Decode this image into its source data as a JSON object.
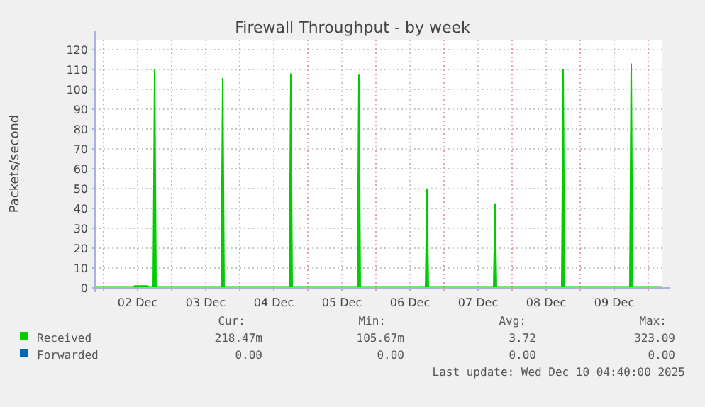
{
  "chart_data": {
    "type": "area",
    "title": "Firewall Throughput - by week",
    "ylabel": "Packets/second",
    "x": [
      "2025-12-01T21:00",
      "2025-12-02T10:30",
      "2025-12-02T11:00",
      "2025-12-02T15:30",
      "2025-12-02T16:00",
      "2025-12-02T17:30",
      "2025-12-02T18:00",
      "2025-12-02T18:30",
      "2025-12-03T17:30",
      "2025-12-03T18:00",
      "2025-12-03T18:30",
      "2025-12-04T17:30",
      "2025-12-04T18:00",
      "2025-12-04T18:30",
      "2025-12-05T17:30",
      "2025-12-05T18:00",
      "2025-12-05T18:30",
      "2025-12-06T17:30",
      "2025-12-06T18:00",
      "2025-12-06T18:30",
      "2025-12-07T17:30",
      "2025-12-07T18:00",
      "2025-12-07T18:30",
      "2025-12-08T17:30",
      "2025-12-08T18:00",
      "2025-12-08T18:30",
      "2025-12-09T17:30",
      "2025-12-09T18:00",
      "2025-12-09T18:30",
      "2025-12-10T04:40"
    ],
    "series": [
      {
        "name": "Received",
        "color": "#00cc00",
        "values": [
          0.2,
          0.2,
          1,
          1,
          0.2,
          0.2,
          110,
          0.2,
          0.2,
          105.7,
          0.2,
          0.2,
          108,
          0.2,
          0.2,
          107.4,
          0.2,
          0.2,
          50,
          0.2,
          0.2,
          42.6,
          0.2,
          0.2,
          110,
          0.2,
          0.2,
          113,
          0.2,
          0.2
        ]
      },
      {
        "name": "Forwarded",
        "color": "#0066b3",
        "values": [
          null,
          null,
          null,
          null,
          null,
          null,
          null,
          null,
          null,
          null,
          null,
          null,
          null,
          null,
          null,
          null,
          null,
          null,
          null,
          null,
          null,
          null,
          null,
          null,
          null,
          null,
          null,
          null,
          null,
          null
        ]
      }
    ],
    "xlim": [
      "2025-12-01T21:00",
      "2025-12-10T05:00"
    ],
    "xticks": [
      {
        "value": "2025-12-02T00:00",
        "label": null
      },
      {
        "value": "2025-12-02T12:00",
        "label": "02 Dec"
      },
      {
        "value": "2025-12-03T00:00",
        "label": null
      },
      {
        "value": "2025-12-03T12:00",
        "label": "03 Dec"
      },
      {
        "value": "2025-12-04T00:00",
        "label": null
      },
      {
        "value": "2025-12-04T12:00",
        "label": "04 Dec"
      },
      {
        "value": "2025-12-05T00:00",
        "label": null
      },
      {
        "value": "2025-12-05T12:00",
        "label": "05 Dec"
      },
      {
        "value": "2025-12-06T00:00",
        "label": null
      },
      {
        "value": "2025-12-06T12:00",
        "label": "06 Dec"
      },
      {
        "value": "2025-12-07T00:00",
        "label": null
      },
      {
        "value": "2025-12-07T12:00",
        "label": "07 Dec"
      },
      {
        "value": "2025-12-08T00:00",
        "label": null
      },
      {
        "value": "2025-12-08T12:00",
        "label": "08 Dec"
      },
      {
        "value": "2025-12-09T00:00",
        "label": null
      },
      {
        "value": "2025-12-09T12:00",
        "label": "09 Dec"
      },
      {
        "value": "2025-12-10T00:00",
        "label": null
      }
    ],
    "ylim": [
      0,
      125
    ],
    "yticks": [
      0,
      10,
      20,
      30,
      40,
      50,
      60,
      70,
      80,
      90,
      100,
      110,
      120
    ],
    "grid": true,
    "legend": "bottom",
    "annotations": [
      "Cur:",
      "Min:",
      "Avg:",
      "Max:",
      "218.47m",
      "105.67m",
      "3.72",
      "323.09",
      "0.00",
      "0.00",
      "0.00",
      "0.00",
      "Last update: Wed Dec 10 04:40:00 2025"
    ]
  }
}
